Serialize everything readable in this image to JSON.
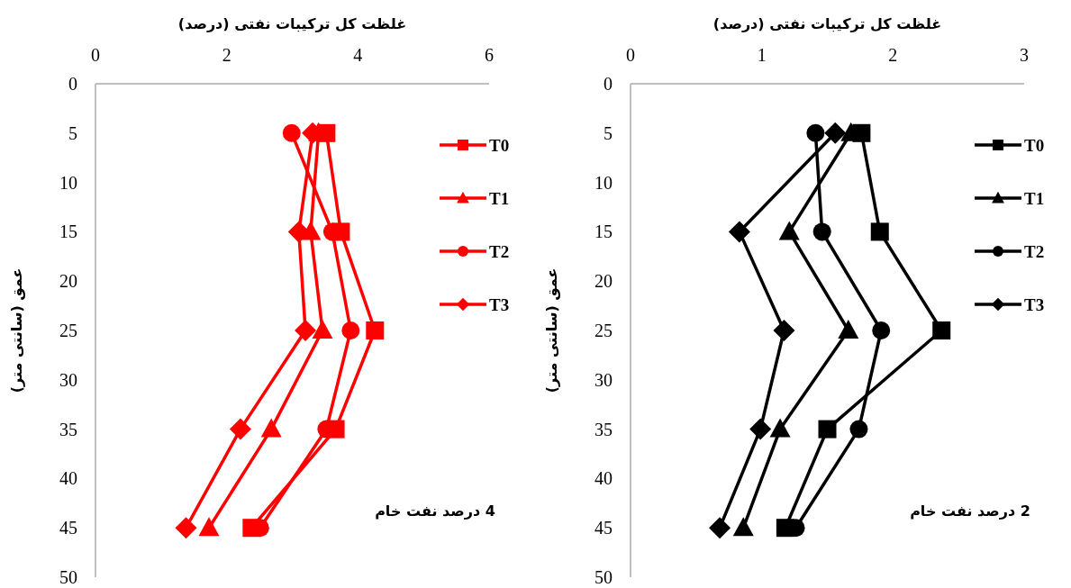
{
  "chart_data": [
    {
      "type": "line",
      "title": "غلظت کل ترکیبات نفتی (درصد)",
      "ylabel": "عمق (سانتی متر)",
      "annotations": [
        "4 درصد نفت خام"
      ],
      "x": [
        5,
        15,
        25,
        35,
        45
      ],
      "orientation": "horizontal",
      "xlim": [
        0,
        6
      ],
      "xticks": [
        0,
        2,
        4,
        6
      ],
      "ylim": [
        50,
        0
      ],
      "yticks": [
        0,
        5,
        10,
        15,
        20,
        25,
        30,
        35,
        40,
        45,
        50
      ],
      "grid": false,
      "legend": "right",
      "line_style": "solid",
      "series": [
        {
          "name": "T0",
          "color": "#ff0000",
          "marker": "square",
          "values": [
            3.52,
            3.74,
            4.26,
            3.66,
            2.38
          ]
        },
        {
          "name": "T1",
          "color": "#ff0000",
          "marker": "triangle",
          "values": [
            3.4,
            3.28,
            3.46,
            2.68,
            1.73
          ]
        },
        {
          "name": "T2",
          "color": "#ff0000",
          "marker": "circle",
          "values": [
            2.99,
            3.61,
            3.89,
            3.52,
            2.51
          ]
        },
        {
          "name": "T3",
          "color": "#ff0000",
          "marker": "diamond",
          "values": [
            3.31,
            3.1,
            3.2,
            2.21,
            1.38
          ]
        }
      ]
    },
    {
      "type": "line",
      "title": "غلظت کل ترکیبات نفتی (درصد)",
      "ylabel": "عمق (سانتی متر)",
      "annotations": [
        "2 درصد نفت خام"
      ],
      "x": [
        5,
        15,
        25,
        35,
        45
      ],
      "orientation": "horizontal",
      "xlim": [
        0,
        3
      ],
      "xticks": [
        0,
        1,
        2,
        3
      ],
      "ylim": [
        50,
        0
      ],
      "yticks": [
        0,
        5,
        10,
        15,
        20,
        25,
        30,
        35,
        40,
        45,
        50
      ],
      "grid": false,
      "legend": "right",
      "line_style": "solid",
      "series": [
        {
          "name": "T0",
          "color": "#000000",
          "marker": "square",
          "values": [
            1.76,
            1.9,
            2.37,
            1.5,
            1.18
          ]
        },
        {
          "name": "T1",
          "color": "#000000",
          "marker": "triangle",
          "values": [
            1.68,
            1.21,
            1.66,
            1.14,
            0.86
          ]
        },
        {
          "name": "T2",
          "color": "#000000",
          "marker": "circle",
          "values": [
            1.41,
            1.46,
            1.91,
            1.74,
            1.26
          ]
        },
        {
          "name": "T3",
          "color": "#000000",
          "marker": "diamond",
          "values": [
            1.56,
            0.83,
            1.17,
            0.99,
            0.68
          ]
        }
      ]
    }
  ]
}
